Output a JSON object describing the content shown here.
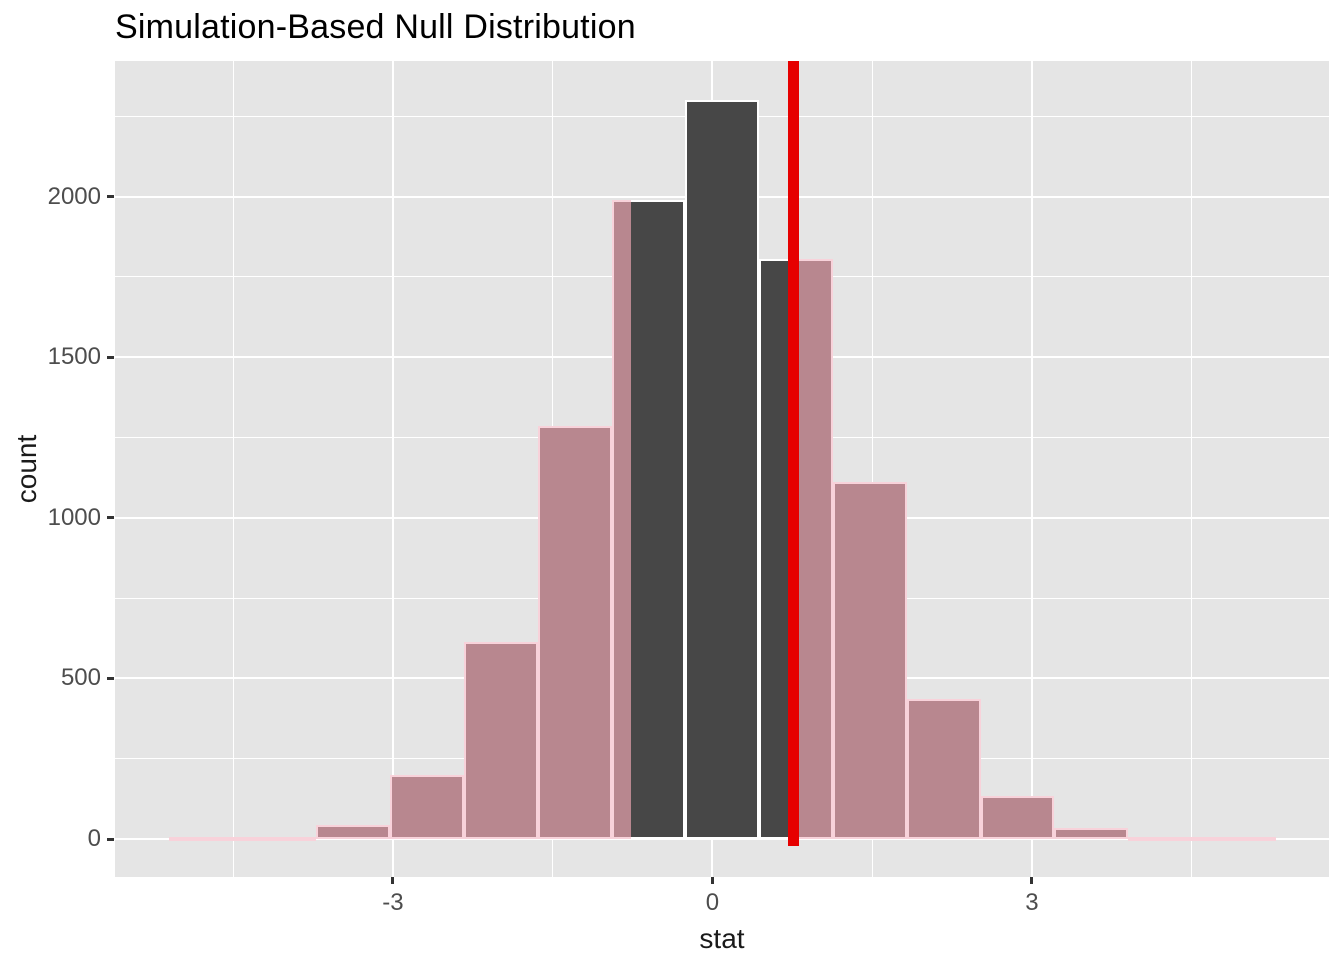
{
  "title": "Simulation-Based Null Distribution",
  "x_axis": {
    "label": "stat",
    "ticks": [
      {
        "value": -3,
        "label": "-3"
      },
      {
        "value": 0,
        "label": "0"
      },
      {
        "value": 3,
        "label": "3"
      }
    ]
  },
  "y_axis": {
    "label": "count",
    "ticks": [
      {
        "value": 0,
        "label": "0"
      },
      {
        "value": 500,
        "label": "500"
      },
      {
        "value": 1000,
        "label": "1000"
      },
      {
        "value": 1500,
        "label": "1500"
      },
      {
        "value": 2000,
        "label": "2000"
      }
    ]
  },
  "colors": {
    "panel_bg": "#E5E5E5",
    "grid": "#FFFFFF",
    "null_bar_fill": "#474747",
    "null_bar_border": "#FFFFFF",
    "shaded_bar_fill": "#B8878F",
    "shaded_bar_border": "#F8D2DA",
    "observed_line": "#E60000",
    "tick_text": "#4D4D4D",
    "axis_title_text": "#1A1A1A",
    "title_text": "#000000"
  },
  "chart_data": {
    "type": "bar",
    "subtype": "histogram",
    "title": "Simulation-Based Null Distribution",
    "xlabel": "stat",
    "ylabel": "count",
    "xlim": [
      -5.61,
      5.79
    ],
    "ylim": [
      -118,
      2422
    ],
    "grid": true,
    "legend_position": "none",
    "x_major_ticks": [
      -3,
      0,
      3
    ],
    "x_minor_gridlines": [
      -4.5,
      -1.5,
      1.5,
      4.5
    ],
    "y_major_ticks": [
      0,
      500,
      1000,
      1500,
      2000
    ],
    "y_minor_gridlines": [
      250,
      750,
      1250,
      1750,
      2250
    ],
    "bin_edges": [
      -5.105,
      -4.412,
      -3.719,
      -3.026,
      -2.333,
      -1.64,
      -0.947,
      -0.254,
      0.439,
      1.132,
      1.825,
      2.518,
      3.211,
      3.904,
      4.597,
      5.29
    ],
    "counts": [
      1,
      5,
      45,
      200,
      615,
      1285,
      1990,
      2300,
      1805,
      1110,
      435,
      135,
      33,
      4,
      1
    ],
    "observed_stat": 0.76,
    "shade_direction": "two-sided",
    "series": [
      {
        "name": "null-distribution-inside-observed",
        "role": "dark-bars"
      },
      {
        "name": "shaded-p-value-region",
        "role": "pink-bars"
      }
    ]
  }
}
